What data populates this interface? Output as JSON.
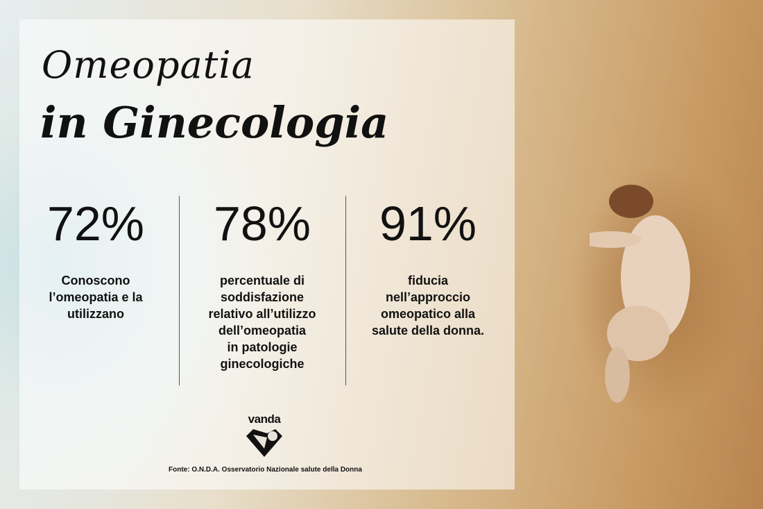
{
  "title": {
    "line1": "Omeopatia",
    "line2": "in Ginecologia"
  },
  "stats": [
    {
      "value": "72%",
      "label": [
        "Conoscono",
        "l’omeopatia e la",
        "utilizzano"
      ]
    },
    {
      "value": "78%",
      "label": [
        "percentuale di",
        "soddisfazione",
        "relativo all’utilizzo",
        "dell’omeopatia",
        "in patologie",
        "ginecologiche"
      ]
    },
    {
      "value": "91%",
      "label": [
        "fiducia",
        "nell’approccio",
        "omeopatico alla",
        "salute della donna."
      ]
    }
  ],
  "logo": {
    "text": "vanda"
  },
  "source": "Fonte: O.N.D.A. Osservatorio Nazionale salute della Donna"
}
